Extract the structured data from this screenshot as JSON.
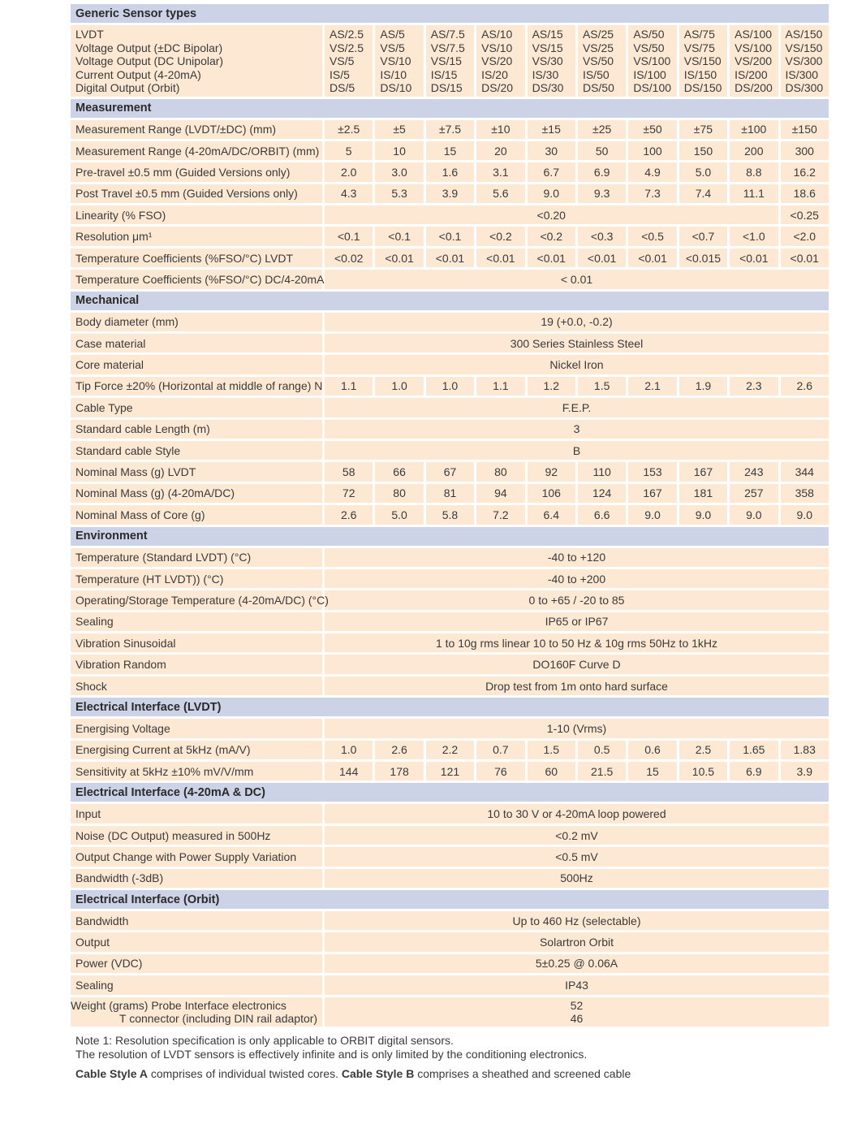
{
  "colors": {
    "section": "#cdd3e6",
    "cell": "#fde9d3"
  },
  "header": {
    "title": "Generic Sensor types",
    "labels": [
      "LVDT",
      "Voltage Output (±DC Bipolar)",
      "Voltage Output (DC Unipolar)",
      "Current Output (4-20mA)",
      "Digital Output (Orbit)"
    ],
    "models": [
      [
        "AS/2.5",
        "VS/2.5",
        "VS/5",
        "IS/5",
        "DS/5"
      ],
      [
        "AS/5",
        "VS/5",
        "VS/10",
        "IS/10",
        "DS/10"
      ],
      [
        "AS/7.5",
        "VS/7.5",
        "VS/15",
        "IS/15",
        "DS/15"
      ],
      [
        "AS/10",
        "VS/10",
        "VS/20",
        "IS/20",
        "DS/20"
      ],
      [
        "AS/15",
        "VS/15",
        "VS/30",
        "IS/30",
        "DS/30"
      ],
      [
        "AS/25",
        "VS/25",
        "VS/50",
        "IS/50",
        "DS/50"
      ],
      [
        "AS/50",
        "VS/50",
        "VS/100",
        "IS/100",
        "DS/100"
      ],
      [
        "AS/75",
        "VS/75",
        "VS/150",
        "IS/150",
        "DS/150"
      ],
      [
        "AS/100",
        "VS/100",
        "VS/200",
        "IS/200",
        "DS/200"
      ],
      [
        "AS/150",
        "VS/150",
        "VS/300",
        "IS/300",
        "DS/300"
      ]
    ]
  },
  "sections": [
    {
      "title": "Measurement",
      "rows": [
        {
          "label": "Measurement Range (LVDT/±DC) (mm)",
          "values": [
            "±2.5",
            "±5",
            "±7.5",
            "±10",
            "±15",
            "±25",
            "±50",
            "±75",
            "±100",
            "±150"
          ]
        },
        {
          "label": "Measurement Range (4-20mA/DC/ORBIT) (mm)",
          "values": [
            "5",
            "10",
            "15",
            "20",
            "30",
            "50",
            "100",
            "150",
            "200",
            "300"
          ]
        },
        {
          "label": "Pre-travel ±0.5 mm (Guided Versions only)",
          "values": [
            "2.0",
            "3.0",
            "1.6",
            "3.1",
            "6.7",
            "6.9",
            "4.9",
            "5.0",
            "8.8",
            "16.2"
          ]
        },
        {
          "label": "Post Travel ±0.5 mm (Guided Versions only)",
          "values": [
            "4.3",
            "5.3",
            "3.9",
            "5.6",
            "9.0",
            "9.3",
            "7.3",
            "7.4",
            "11.1",
            "18.6"
          ]
        },
        {
          "label": "Linearity (% FSO)",
          "split": [
            "<0.20",
            "<0.25"
          ]
        },
        {
          "label": "Resolution μm¹",
          "values": [
            "<0.1",
            "<0.1",
            "<0.1",
            "<0.2",
            "<0.2",
            "<0.3",
            "<0.5",
            "<0.7",
            "<1.0",
            "<2.0"
          ]
        },
        {
          "label": "Temperature Coefficients (%FSO/°C) LVDT",
          "values": [
            "<0.02",
            "<0.01",
            "<0.01",
            "<0.01",
            "<0.01",
            "<0.01",
            "<0.01",
            "<0.015",
            "<0.01",
            "<0.01"
          ]
        },
        {
          "label": "Temperature Coefficients (%FSO/°C) DC/4-20mA",
          "span": "< 0.01"
        }
      ]
    },
    {
      "title": "Mechanical",
      "rows": [
        {
          "label": "Body diameter (mm)",
          "span": "19 (+0.0,  -0.2)"
        },
        {
          "label": "Case material",
          "span": "300 Series Stainless Steel"
        },
        {
          "label": "Core material",
          "span": "Nickel Iron"
        },
        {
          "label": "Tip Force ±20% (Horizontal at middle of range) N",
          "values": [
            "1.1",
            "1.0",
            "1.0",
            "1.1",
            "1.2",
            "1.5",
            "2.1",
            "1.9",
            "2.3",
            "2.6"
          ]
        },
        {
          "label": "Cable Type",
          "span": "F.E.P."
        },
        {
          "label": "Standard cable Length  (m)",
          "span": "3"
        },
        {
          "label": "Standard cable Style",
          "span": "B"
        },
        {
          "label": "Nominal Mass (g) LVDT",
          "values": [
            "58",
            "66",
            "67",
            "80",
            "92",
            "110",
            "153",
            "167",
            "243",
            "344"
          ]
        },
        {
          "label": "Nominal Mass (g) (4-20mA/DC)",
          "values": [
            "72",
            "80",
            "81",
            "94",
            "106",
            "124",
            "167",
            "181",
            "257",
            "358"
          ]
        },
        {
          "label": "Nominal Mass of Core (g)",
          "values": [
            "2.6",
            "5.0",
            "5.8",
            "7.2",
            "6.4",
            "6.6",
            "9.0",
            "9.0",
            "9.0",
            "9.0"
          ]
        }
      ]
    },
    {
      "title": "Environment",
      "rows": [
        {
          "label": "Temperature (Standard LVDT) (°C)",
          "span": "-40 to +120"
        },
        {
          "label": "Temperature (HT LVDT)) (°C)",
          "span": "-40 to +200"
        },
        {
          "label": "Operating/Storage Temperature (4-20mA/DC) (°C)",
          "span": "0 to +65 / -20 to 85"
        },
        {
          "label": "Sealing",
          "span": "IP65 or IP67"
        },
        {
          "label": "Vibration Sinusoidal",
          "span": "1 to 10g rms linear 10 to 50 Hz &  10g rms 50Hz to 1kHz"
        },
        {
          "label": "Vibration Random",
          "span": "DO160F Curve D"
        },
        {
          "label": "Shock",
          "span": "Drop test from 1m onto hard surface"
        }
      ]
    },
    {
      "title": "Electrical Interface (LVDT)",
      "rows": [
        {
          "label": "Energising Voltage",
          "span": "1-10 (Vrms)"
        },
        {
          "label": "Energising  Current at 5kHz (mA/V)",
          "values": [
            "1.0",
            "2.6",
            "2.2",
            "0.7",
            "1.5",
            "0.5",
            "0.6",
            "2.5",
            "1.65",
            "1.83"
          ]
        },
        {
          "label": "Sensitivity at 5kHz  ±10% mV/V/mm",
          "values": [
            "144",
            "178",
            "121",
            "76",
            "60",
            "21.5",
            "15",
            "10.5",
            "6.9",
            "3.9"
          ]
        }
      ]
    },
    {
      "title": "Electrical Interface (4-20mA & DC)",
      "rows": [
        {
          "label": "Input",
          "span": "10 to 30 V or 4-20mA loop powered"
        },
        {
          "label": "Noise (DC Output)  measured in 500Hz",
          "span": "<0.2 mV"
        },
        {
          "label": "Output Change with Power Supply Variation",
          "span": "<0.5 mV"
        },
        {
          "label": "Bandwidth (-3dB)",
          "span": "500Hz"
        }
      ]
    },
    {
      "title": "Electrical Interface (Orbit)",
      "rows": [
        {
          "label": "Bandwidth",
          "span": "Up to 460 Hz (selectable)"
        },
        {
          "label": "Output",
          "span": "Solartron Orbit"
        },
        {
          "label": "Power (VDC)",
          "span": "5±0.25 @ 0.06A"
        },
        {
          "label": "Sealing",
          "span": "IP43"
        },
        {
          "label": "Weight (grams)          Probe Interface electronics",
          "label2": "T connector (including DIN rail adaptor)",
          "span": "52",
          "span2": "46"
        }
      ]
    }
  ],
  "notes": {
    "note1": "Note 1: Resolution specification is only applicable to ORBIT digital sensors.",
    "note2": "The resolution of LVDT sensors is effectively infinite and is only limited by the conditioning electronics.",
    "cable_a_bold": "Cable Style A",
    "cable_a_text": " comprises of individual twisted cores. ",
    "cable_b_bold": "Cable Style B",
    "cable_b_text": " comprises a sheathed and screened cable"
  }
}
